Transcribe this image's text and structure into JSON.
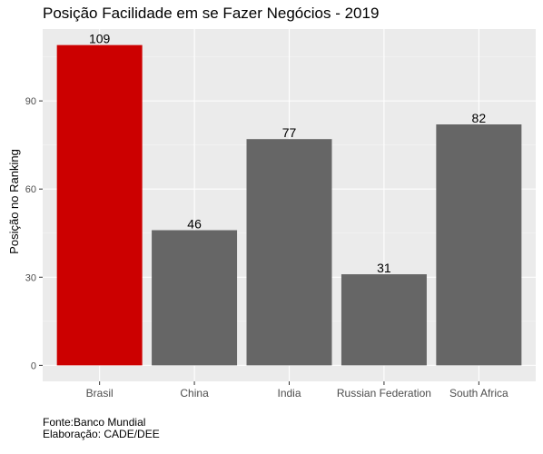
{
  "chart_data": {
    "type": "bar",
    "title": "Posição Facilidade em se Fazer Negócios - 2019",
    "xlabel": "",
    "ylabel": "Posição no Ranking",
    "categories": [
      "Brasil",
      "China",
      "India",
      "Russian Federation",
      "South Africa"
    ],
    "values": [
      109,
      46,
      77,
      31,
      82
    ],
    "data_labels": [
      "109",
      "46",
      "77",
      "31",
      "82"
    ],
    "yticks": [
      0,
      30,
      60,
      90
    ],
    "ytick_labels": [
      "0",
      "30",
      "60",
      "90"
    ],
    "ylim": [
      -5.45,
      114.45
    ],
    "grid": true,
    "legend": "none",
    "colors": {
      "highlight": "#cc0000",
      "bar": "#666666",
      "panel": "#ebebeb",
      "grid_major": "#ffffff",
      "grid_minor": "#f5f5f5",
      "tick_text": "#4d4d4d"
    },
    "highlight_category": "Brasil"
  },
  "caption": {
    "line1": "Fonte:Banco Mundial",
    "line2": "Elaboração: CADE/DEE"
  }
}
